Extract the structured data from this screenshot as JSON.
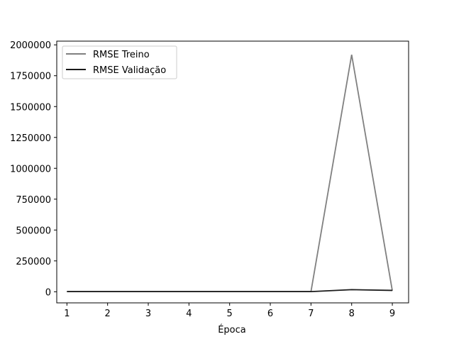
{
  "chart_data": {
    "type": "line",
    "title": "",
    "xlabel": "Época",
    "ylabel": "",
    "x": [
      1,
      2,
      3,
      4,
      5,
      6,
      7,
      8,
      9
    ],
    "xlim": [
      0.75,
      9.4
    ],
    "ylim": [
      -90000,
      2030000
    ],
    "xticks": [
      1,
      2,
      3,
      4,
      5,
      6,
      7,
      8,
      9
    ],
    "yticks": [
      0,
      250000,
      500000,
      750000,
      1000000,
      1250000,
      1500000,
      1750000,
      2000000
    ],
    "grid": false,
    "legend_position": "top-left",
    "series": [
      {
        "name": "RMSE Treino",
        "color": "#808080",
        "values": [
          2000,
          1500,
          1500,
          1500,
          1500,
          1500,
          1500,
          1920000,
          8000
        ]
      },
      {
        "name": "RMSE Validação",
        "color": "#1a1a1a",
        "values": [
          1000,
          1000,
          1000,
          1000,
          1000,
          1000,
          1000,
          17000,
          11000
        ]
      }
    ]
  }
}
